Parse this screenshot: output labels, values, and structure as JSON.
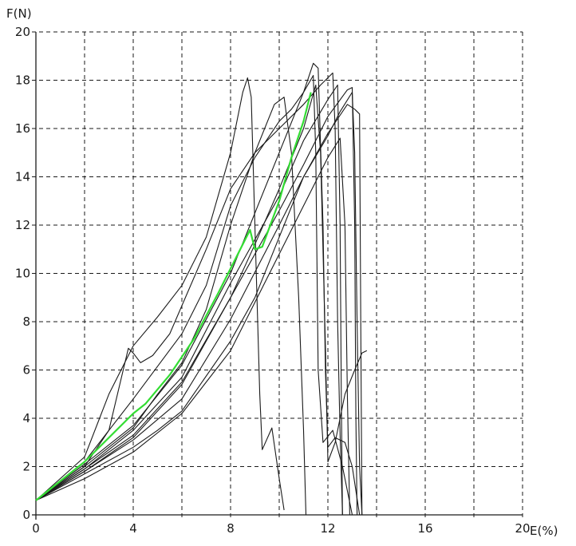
{
  "chart_data": {
    "type": "line",
    "xlabel": "E(%)",
    "ylabel": "F(N)",
    "xlim": [
      0,
      20
    ],
    "ylim": [
      0,
      20
    ],
    "x_ticks": [
      0,
      4,
      8,
      12,
      16,
      20
    ],
    "y_ticks": [
      0,
      2,
      4,
      6,
      8,
      10,
      12,
      14,
      16,
      18,
      20
    ],
    "x_grid": [
      0,
      2,
      4,
      6,
      8,
      10,
      12,
      14,
      16,
      18,
      20
    ],
    "y_grid": [
      0,
      2,
      4,
      6,
      8,
      10,
      12,
      14,
      16,
      18,
      20
    ],
    "grid": "dashed",
    "colors": {
      "highlight": "#33dd33",
      "specimens": "#1a1a1a",
      "grid": "#1a1a1a"
    },
    "series": [
      {
        "highlight": true,
        "points": [
          [
            0,
            0.6
          ],
          [
            2,
            2.2
          ],
          [
            4,
            4.2
          ],
          [
            4.5,
            4.6
          ],
          [
            5.5,
            5.8
          ],
          [
            6.5,
            7.3
          ],
          [
            7.5,
            9.2
          ],
          [
            8.8,
            11.8
          ],
          [
            9.0,
            11.0
          ],
          [
            9.3,
            11.1
          ],
          [
            10,
            13.0
          ],
          [
            10.5,
            14.8
          ],
          [
            11.0,
            16.3
          ],
          [
            11.3,
            17.5
          ]
        ]
      },
      {
        "points": [
          [
            0,
            0.6
          ],
          [
            2,
            2.0
          ],
          [
            3,
            3.5
          ],
          [
            3.8,
            6.9
          ],
          [
            4.0,
            6.7
          ],
          [
            4.3,
            6.3
          ],
          [
            4.8,
            6.6
          ],
          [
            5.5,
            7.5
          ],
          [
            7.0,
            11.0
          ],
          [
            8.0,
            13.5
          ],
          [
            9.0,
            15.0
          ],
          [
            10.0,
            16.0
          ],
          [
            11.0,
            17.0
          ],
          [
            11.7,
            17.8
          ],
          [
            12.2,
            18.3
          ],
          [
            12.3,
            16.0
          ],
          [
            12.4,
            8.0
          ],
          [
            12.5,
            3.3
          ],
          [
            12.6,
            0
          ]
        ]
      },
      {
        "points": [
          [
            0,
            0.6
          ],
          [
            2,
            2.4
          ],
          [
            3,
            5.0
          ],
          [
            4,
            7.0
          ],
          [
            5,
            8.2
          ],
          [
            6,
            9.5
          ],
          [
            7,
            11.5
          ],
          [
            8,
            15.0
          ],
          [
            8.5,
            17.5
          ],
          [
            8.7,
            18.1
          ],
          [
            8.85,
            17.3
          ],
          [
            9.0,
            12.0
          ],
          [
            9.2,
            5.0
          ],
          [
            9.3,
            2.7
          ],
          [
            9.7,
            3.6
          ],
          [
            10.0,
            1.5
          ],
          [
            10.2,
            0.2
          ]
        ]
      },
      {
        "points": [
          [
            0,
            0.6
          ],
          [
            2,
            2.0
          ],
          [
            4,
            3.6
          ],
          [
            5,
            5.0
          ],
          [
            6,
            6.3
          ],
          [
            7,
            8.5
          ],
          [
            8,
            12.0
          ],
          [
            9,
            15.0
          ],
          [
            9.8,
            17.0
          ],
          [
            10.2,
            17.3
          ],
          [
            10.5,
            15.0
          ],
          [
            10.8,
            9.0
          ],
          [
            11.0,
            3.5
          ],
          [
            11.1,
            0
          ]
        ]
      },
      {
        "points": [
          [
            0,
            0.6
          ],
          [
            2,
            1.7
          ],
          [
            4,
            2.8
          ],
          [
            5,
            3.5
          ],
          [
            6,
            4.3
          ],
          [
            8,
            7.2
          ],
          [
            9,
            9.0
          ],
          [
            10,
            11.5
          ],
          [
            11,
            14.0
          ],
          [
            12,
            15.7
          ],
          [
            12.5,
            16.7
          ],
          [
            13.0,
            17.5
          ],
          [
            13.1,
            15.0
          ],
          [
            13.2,
            8.0
          ],
          [
            13.3,
            2.0
          ],
          [
            13.4,
            0
          ]
        ]
      },
      {
        "points": [
          [
            0,
            0.6
          ],
          [
            2,
            1.9
          ],
          [
            4,
            3.3
          ],
          [
            6,
            5.5
          ],
          [
            8,
            9.0
          ],
          [
            9,
            11.2
          ],
          [
            10,
            13.5
          ],
          [
            11,
            16.0
          ],
          [
            11.5,
            17.8
          ],
          [
            11.7,
            15.0
          ],
          [
            11.9,
            7.0
          ],
          [
            12.0,
            2.2
          ],
          [
            12.3,
            3.0
          ],
          [
            12.7,
            5.0
          ],
          [
            13.1,
            6.0
          ],
          [
            13.4,
            6.7
          ],
          [
            13.6,
            6.8
          ]
        ]
      },
      {
        "points": [
          [
            0,
            0.6
          ],
          [
            2,
            2.1
          ],
          [
            4,
            3.7
          ],
          [
            6,
            6.2
          ],
          [
            8,
            10.0
          ],
          [
            9,
            12.5
          ],
          [
            10,
            15.0
          ],
          [
            11,
            17.5
          ],
          [
            11.4,
            18.7
          ],
          [
            11.6,
            18.5
          ],
          [
            11.8,
            12.0
          ],
          [
            11.9,
            6.0
          ],
          [
            12.0,
            2.8
          ],
          [
            12.3,
            3.2
          ],
          [
            12.7,
            3.0
          ],
          [
            13.0,
            2.0
          ],
          [
            13.3,
            0
          ]
        ]
      },
      {
        "points": [
          [
            0,
            0.6
          ],
          [
            2,
            1.8
          ],
          [
            4,
            3.1
          ],
          [
            6,
            4.8
          ],
          [
            8,
            8.1
          ],
          [
            10,
            12.0
          ],
          [
            11,
            14.0
          ],
          [
            12,
            15.8
          ],
          [
            12.8,
            17.0
          ],
          [
            13.1,
            16.8
          ],
          [
            13.3,
            16.6
          ],
          [
            13.35,
            8.0
          ],
          [
            13.4,
            0
          ]
        ]
      },
      {
        "points": [
          [
            0,
            0.6
          ],
          [
            2,
            1.8
          ],
          [
            4,
            3.2
          ],
          [
            6,
            5.4
          ],
          [
            8,
            9.0
          ],
          [
            10,
            12.6
          ],
          [
            11,
            14.5
          ],
          [
            12,
            16.5
          ],
          [
            12.8,
            17.6
          ],
          [
            13.0,
            17.7
          ],
          [
            13.1,
            12.0
          ],
          [
            13.15,
            4.0
          ],
          [
            13.2,
            0
          ]
        ]
      },
      {
        "points": [
          [
            0,
            0.6
          ],
          [
            2,
            2.2
          ],
          [
            4,
            4.8
          ],
          [
            6,
            7.5
          ],
          [
            7,
            9.5
          ],
          [
            8,
            12.8
          ],
          [
            9,
            14.8
          ],
          [
            10,
            16.3
          ],
          [
            10.5,
            16.8
          ],
          [
            11,
            17.5
          ],
          [
            11.4,
            18.2
          ],
          [
            11.5,
            15.0
          ],
          [
            11.6,
            6.0
          ],
          [
            11.8,
            3.0
          ],
          [
            12.2,
            3.5
          ],
          [
            12.6,
            2.0
          ],
          [
            13.0,
            0
          ]
        ]
      },
      {
        "points": [
          [
            0,
            0.6
          ],
          [
            2,
            1.9
          ],
          [
            4,
            3.5
          ],
          [
            6,
            5.7
          ],
          [
            8,
            9.6
          ],
          [
            10,
            13.2
          ],
          [
            11,
            15.5
          ],
          [
            12,
            17.2
          ],
          [
            12.2,
            17.5
          ],
          [
            12.4,
            17.8
          ],
          [
            12.5,
            12.0
          ],
          [
            12.55,
            5.0
          ],
          [
            12.6,
            0
          ]
        ]
      },
      {
        "points": [
          [
            0,
            0.6
          ],
          [
            2,
            1.5
          ],
          [
            4,
            2.6
          ],
          [
            6,
            4.2
          ],
          [
            8,
            6.8
          ],
          [
            10,
            10.8
          ],
          [
            11,
            12.8
          ],
          [
            12,
            14.8
          ],
          [
            12.5,
            15.6
          ],
          [
            12.7,
            12.0
          ],
          [
            12.8,
            5.0
          ],
          [
            12.9,
            0
          ]
        ]
      }
    ]
  }
}
